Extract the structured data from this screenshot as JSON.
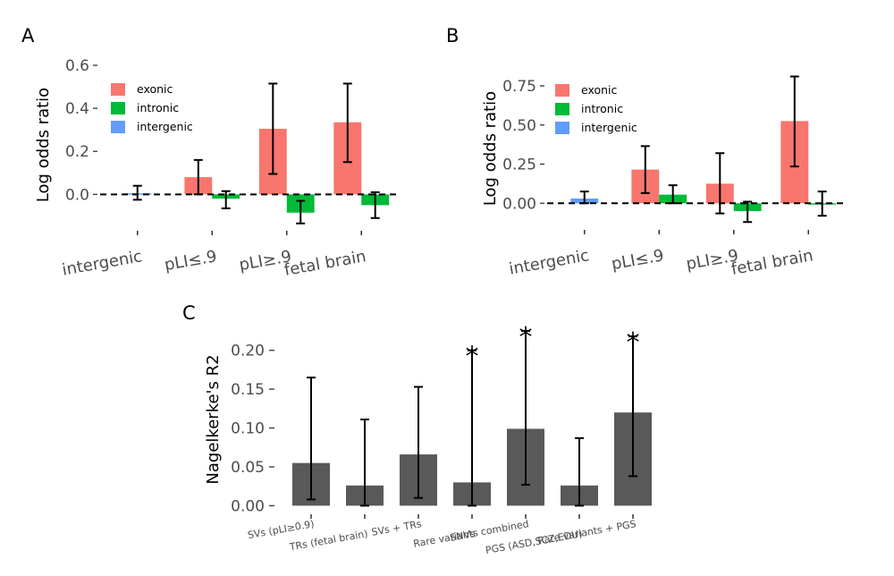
{
  "chart_data": [
    {
      "type": "bar",
      "panel": "A",
      "ylabel": "Log odds ratio",
      "ylim": [
        -0.14,
        0.6
      ],
      "yticks": [
        0.0,
        0.2,
        0.4,
        0.6
      ],
      "ytick_labels": [
        "0.0",
        "0.2",
        "0.4",
        "0.6"
      ],
      "categories": [
        "intergenic",
        "pLI≤.9",
        "pLI≥.9",
        "fetal brain"
      ],
      "reference_line": 0,
      "legend": [
        "exonic",
        "intronic",
        "intergenic"
      ],
      "colors": {
        "exonic": "#f8766d",
        "intronic": "#00ba38",
        "intergenic": "#619cff"
      },
      "bars": [
        {
          "category": "intergenic",
          "series": "intergenic",
          "value": 0.005,
          "err_low": -0.025,
          "err_high": 0.04
        },
        {
          "category": "pLI≤.9",
          "series": "exonic",
          "value": 0.08,
          "err_low": 0.0,
          "err_high": 0.16
        },
        {
          "category": "pLI≤.9",
          "series": "intronic",
          "value": -0.02,
          "err_low": -0.065,
          "err_high": 0.015
        },
        {
          "category": "pLI≥.9",
          "series": "exonic",
          "value": 0.305,
          "err_low": 0.095,
          "err_high": 0.515
        },
        {
          "category": "pLI≥.9",
          "series": "intronic",
          "value": -0.085,
          "err_low": -0.135,
          "err_high": -0.03
        },
        {
          "category": "fetal brain",
          "series": "exonic",
          "value": 0.335,
          "err_low": 0.15,
          "err_high": 0.515
        },
        {
          "category": "fetal brain",
          "series": "intronic",
          "value": -0.05,
          "err_low": -0.11,
          "err_high": 0.01
        }
      ]
    },
    {
      "type": "bar",
      "panel": "B",
      "ylabel": "Log odds ratio",
      "ylim": [
        -0.13,
        0.83
      ],
      "yticks": [
        0.0,
        0.25,
        0.5,
        0.75
      ],
      "ytick_labels": [
        "0.00",
        "0.25",
        "0.50",
        "0.75"
      ],
      "categories": [
        "intergenic",
        "pLI≤.9",
        "pLI≥.9",
        "fetal brain"
      ],
      "reference_line": 0,
      "legend": [
        "exonic",
        "intronic",
        "intergenic"
      ],
      "colors": {
        "exonic": "#f8766d",
        "intronic": "#00ba38",
        "intergenic": "#619cff"
      },
      "bars": [
        {
          "category": "intergenic",
          "series": "intergenic",
          "value": 0.03,
          "err_low": 0.0,
          "err_high": 0.075
        },
        {
          "category": "pLI≤.9",
          "series": "exonic",
          "value": 0.215,
          "err_low": 0.065,
          "err_high": 0.365
        },
        {
          "category": "pLI≤.9",
          "series": "intronic",
          "value": 0.055,
          "err_low": 0.0,
          "err_high": 0.115
        },
        {
          "category": "pLI≥.9",
          "series": "exonic",
          "value": 0.125,
          "err_low": -0.065,
          "err_high": 0.32
        },
        {
          "category": "pLI≥.9",
          "series": "intronic",
          "value": -0.05,
          "err_low": -0.12,
          "err_high": 0.01
        },
        {
          "category": "fetal brain",
          "series": "exonic",
          "value": 0.525,
          "err_low": 0.235,
          "err_high": 0.81
        },
        {
          "category": "fetal brain",
          "series": "intronic",
          "value": 0.0,
          "err_low": -0.08,
          "err_high": 0.075
        }
      ]
    },
    {
      "type": "bar",
      "panel": "C",
      "ylabel": "Nagelkerke's R2",
      "ylim": [
        -0.003,
        0.225
      ],
      "yticks": [
        0.0,
        0.05,
        0.1,
        0.15,
        0.2
      ],
      "ytick_labels": [
        "0.00",
        "0.05",
        "0.10",
        "0.15",
        "0.20"
      ],
      "color": "#595959",
      "categories": [
        "SVs (pLI≥0.9)",
        "TRs (fetal brain)",
        "SVs + TRs",
        "SNVs",
        "Rare variants combined",
        "PGS (ASD,SCZ,EDU)",
        "Rare variants + PGS"
      ],
      "values": [
        0.055,
        0.026,
        0.066,
        0.03,
        0.099,
        0.026,
        0.12
      ],
      "err_low": [
        0.008,
        0.0,
        0.01,
        0.0,
        0.027,
        0.0,
        0.038
      ],
      "err_high": [
        0.165,
        0.111,
        0.153,
        0.2,
        0.225,
        0.087,
        0.218
      ],
      "significant": [
        false,
        false,
        false,
        true,
        true,
        false,
        true
      ],
      "significance_marker": "*"
    }
  ]
}
